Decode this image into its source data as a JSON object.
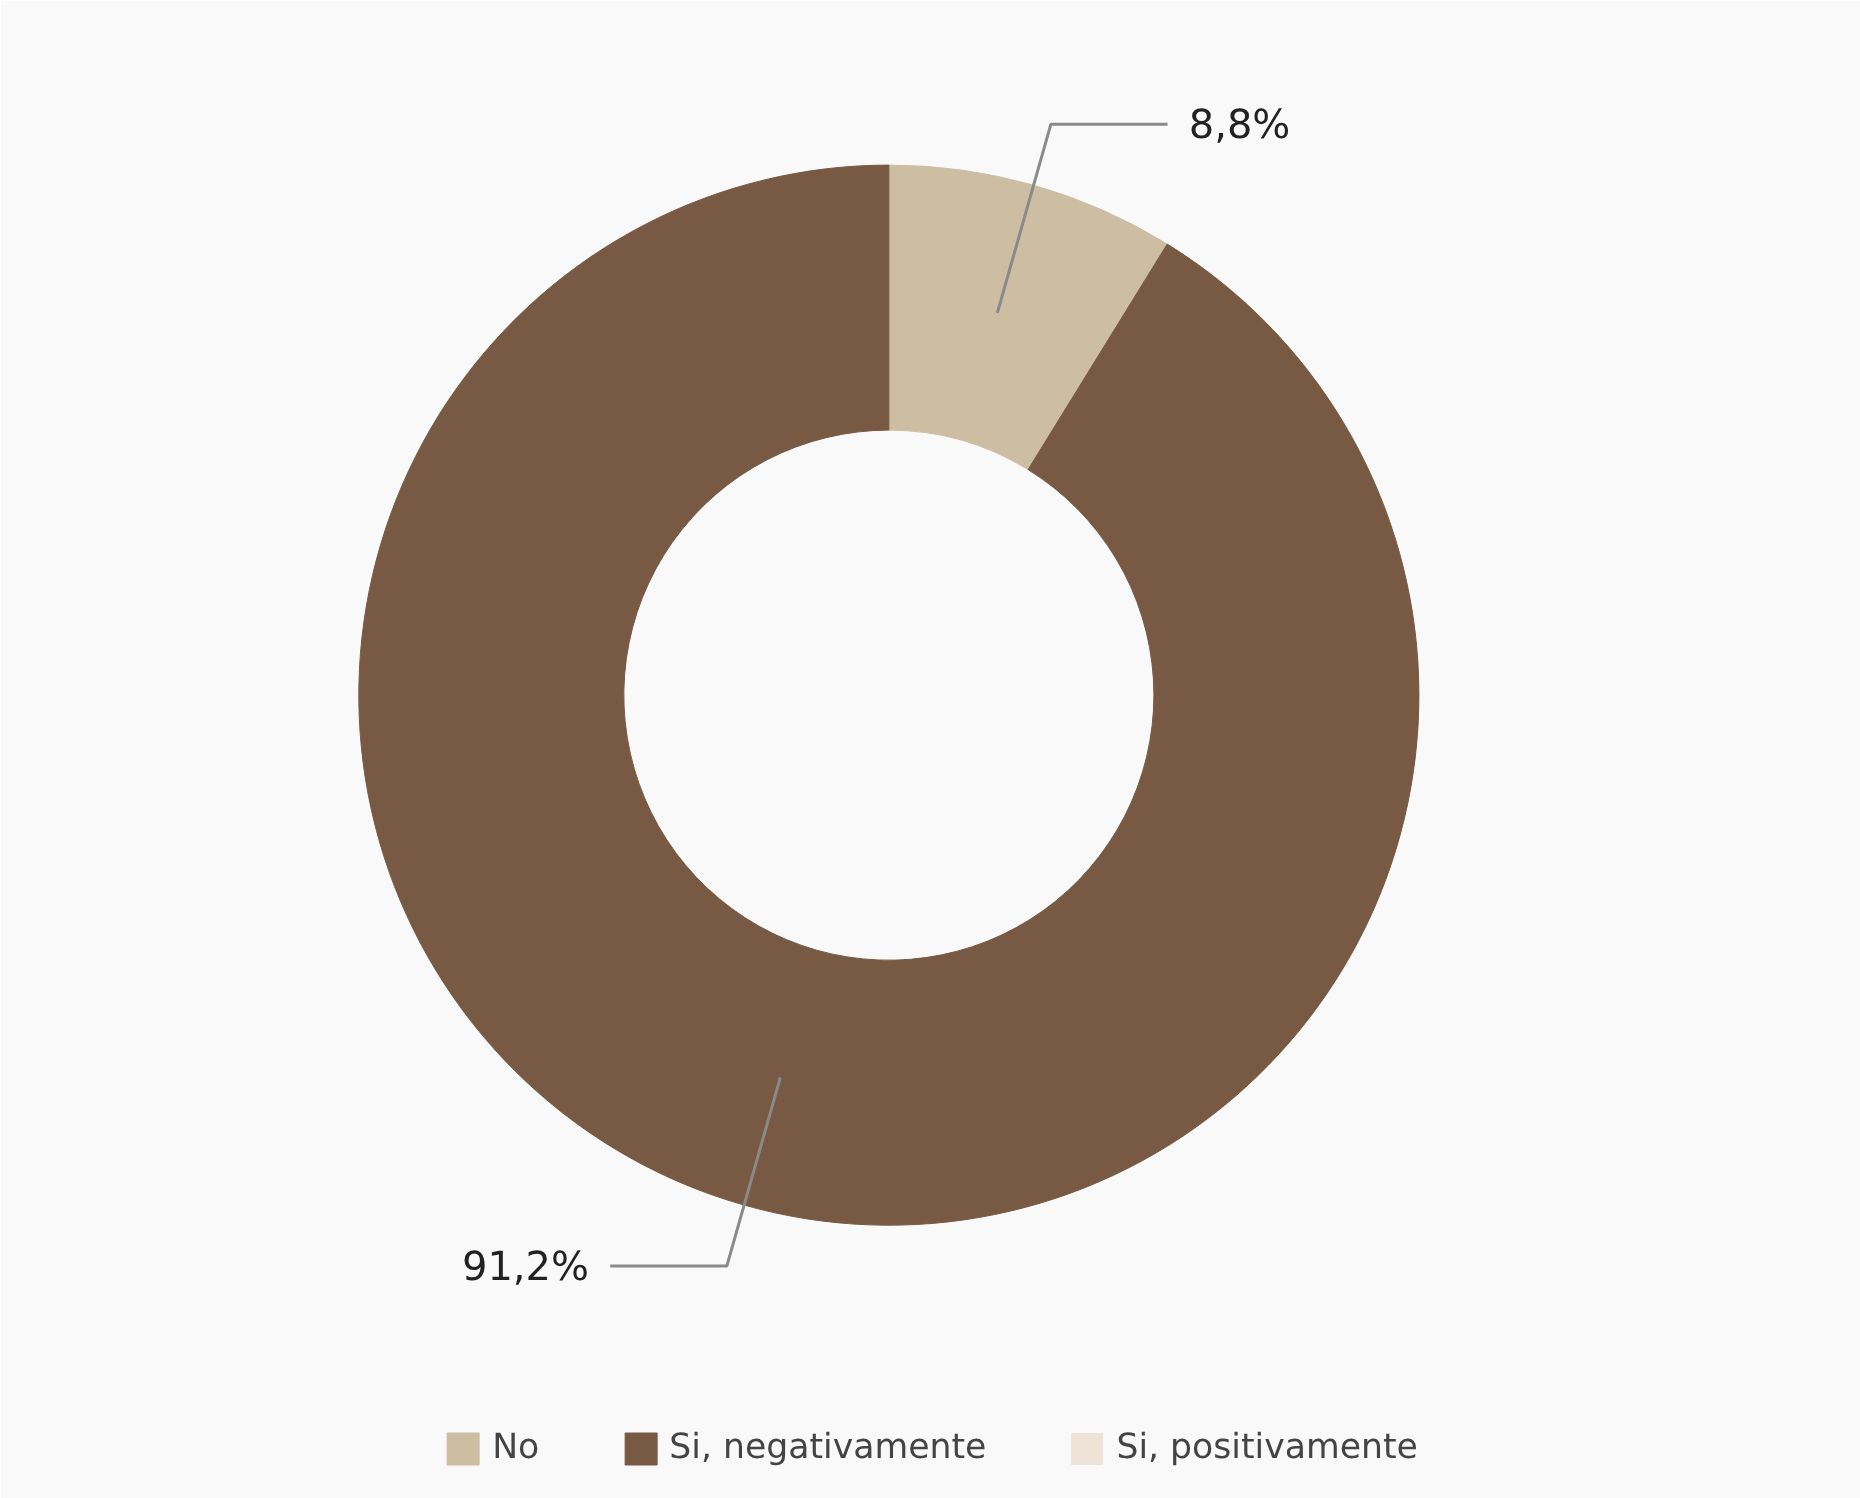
{
  "chart_data": {
    "type": "donut",
    "categories": [
      "No",
      "Si, negativamente",
      "Si, positivamente"
    ],
    "values": [
      8.8,
      91.2,
      0
    ],
    "colors": [
      "#cdbda3",
      "#785a44",
      "#efe3d7"
    ],
    "value_labels": [
      "8,8%",
      "91,2%",
      null
    ],
    "legend": "bottom"
  }
}
